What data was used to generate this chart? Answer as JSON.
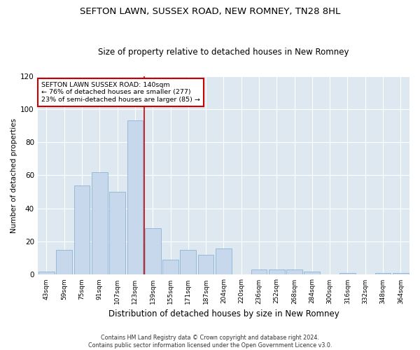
{
  "title": "SEFTON LAWN, SUSSEX ROAD, NEW ROMNEY, TN28 8HL",
  "subtitle": "Size of property relative to detached houses in New Romney",
  "xlabel": "Distribution of detached houses by size in New Romney",
  "ylabel": "Number of detached properties",
  "categories": [
    "43sqm",
    "59sqm",
    "75sqm",
    "91sqm",
    "107sqm",
    "123sqm",
    "139sqm",
    "155sqm",
    "171sqm",
    "187sqm",
    "204sqm",
    "220sqm",
    "236sqm",
    "252sqm",
    "268sqm",
    "284sqm",
    "300sqm",
    "316sqm",
    "332sqm",
    "348sqm",
    "364sqm"
  ],
  "values": [
    2,
    15,
    54,
    62,
    50,
    93,
    28,
    9,
    15,
    12,
    16,
    0,
    3,
    3,
    3,
    2,
    0,
    1,
    0,
    1,
    1
  ],
  "bar_color": "#c8d8ec",
  "bar_edge_color": "#8ab4d4",
  "background_color": "#dde8f0",
  "annotation_line1": "SEFTON LAWN SUSSEX ROAD: 140sqm",
  "annotation_line2": "← 76% of detached houses are smaller (277)",
  "annotation_line3": "23% of semi-detached houses are larger (85) →",
  "annotation_box_color": "#cc0000",
  "ylim": [
    0,
    120
  ],
  "yticks": [
    0,
    20,
    40,
    60,
    80,
    100,
    120
  ],
  "footer1": "Contains HM Land Registry data © Crown copyright and database right 2024.",
  "footer2": "Contains public sector information licensed under the Open Government Licence v3.0."
}
